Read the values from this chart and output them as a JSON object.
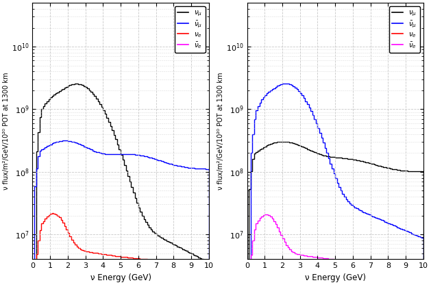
{
  "xlim": [
    0,
    10
  ],
  "ylim": [
    4000000.0,
    50000000000.0
  ],
  "ylabel": "ν flux/m²/GeV/10²⁰ POT at 1300 km",
  "xlabel": "ν Energy (GeV)",
  "grid_color": "#c8c8c8",
  "bg_color": "#ffffff",
  "line_width": 1.0,
  "legend_fontsize": 7.5,
  "tick_fontsize": 8,
  "label_fontsize": 8.5
}
